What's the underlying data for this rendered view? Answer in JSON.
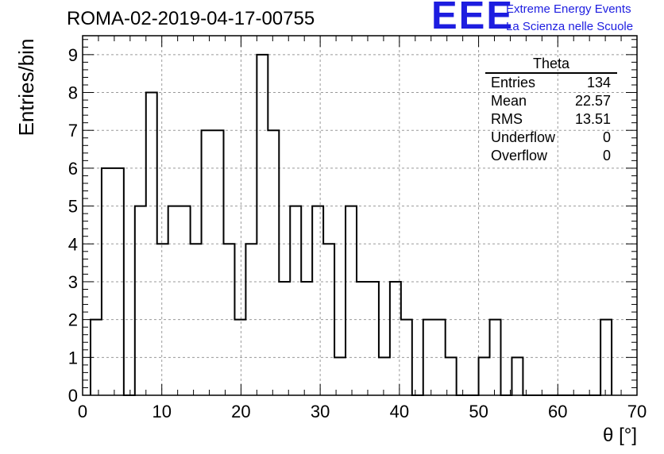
{
  "header": {
    "run_title": "ROMA-02-2019-04-17-00755",
    "logo_text": "EEE",
    "logo_line1": "Extreme Energy Events",
    "logo_line2": "La Scienza nelle Scuole",
    "logo_color": "#1d1de0"
  },
  "stats_box": {
    "title": "Theta",
    "rows": [
      {
        "label": "Entries",
        "value": "134"
      },
      {
        "label": "Mean",
        "value": "22.57"
      },
      {
        "label": "RMS",
        "value": "13.51"
      },
      {
        "label": "Underflow",
        "value": "0"
      },
      {
        "label": "Overflow",
        "value": "0"
      }
    ]
  },
  "chart_data": {
    "type": "bar",
    "histogram": true,
    "xlabel": "θ [°]",
    "ylabel": "Entries/bin",
    "xlim": [
      0,
      70
    ],
    "ylim": [
      0,
      9.5
    ],
    "bin_width": 1.4,
    "bin_edges_start": 1,
    "values": [
      2,
      6,
      6,
      0,
      5,
      8,
      4,
      5,
      5,
      4,
      7,
      7,
      4,
      2,
      4,
      9,
      7,
      3,
      5,
      3,
      5,
      4,
      1,
      5,
      3,
      3,
      1,
      3,
      2,
      0,
      2,
      2,
      1,
      0,
      0,
      1,
      2,
      0,
      1,
      0,
      0,
      0,
      0,
      0,
      0,
      0,
      2
    ],
    "x_ticks": [
      0,
      10,
      20,
      30,
      40,
      50,
      60,
      70
    ],
    "y_ticks": [
      0,
      1,
      2,
      3,
      4,
      5,
      6,
      7,
      8,
      9
    ],
    "grid": true,
    "line_color": "#000000"
  }
}
